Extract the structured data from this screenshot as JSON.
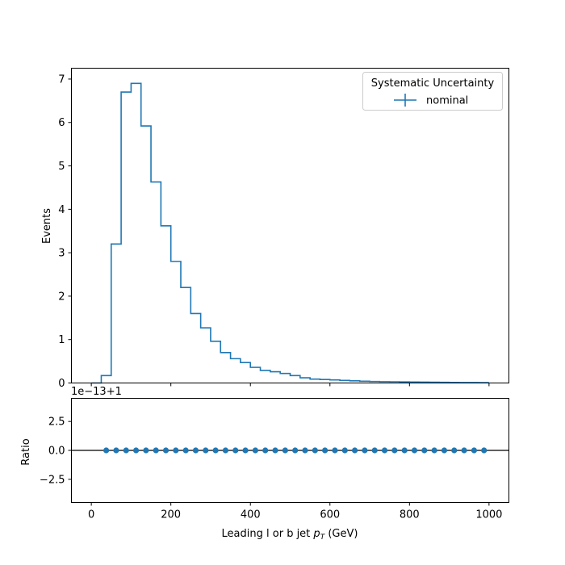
{
  "chart_data": [
    {
      "type": "histogram",
      "ylabel": "Events",
      "legend": {
        "title": "Systematic Uncertainty",
        "placement": "top-right",
        "entries": [
          {
            "label": "nominal",
            "color": "#1f77b4",
            "marker": "errorbar-line"
          }
        ]
      },
      "xlim": [
        -50,
        1050
      ],
      "ylim": [
        0,
        7.25
      ],
      "x_ticks": [
        0,
        200,
        400,
        600,
        800,
        1000
      ],
      "y_ticks": [
        0,
        1,
        2,
        3,
        4,
        5,
        6,
        7
      ],
      "y_tick_labels": [
        "0",
        "1",
        "2",
        "3",
        "4",
        "5",
        "6",
        "7"
      ],
      "bin_edges": [
        0,
        25,
        50,
        75,
        100,
        125,
        150,
        175,
        200,
        225,
        250,
        275,
        300,
        325,
        350,
        375,
        400,
        425,
        450,
        475,
        500,
        525,
        550,
        575,
        600,
        625,
        650,
        675,
        700,
        725,
        750,
        775,
        800,
        825,
        850,
        875,
        900,
        925,
        950,
        975,
        1000
      ],
      "series": [
        {
          "name": "nominal",
          "color": "#1f77b4",
          "values": [
            0.0,
            0.17,
            3.2,
            6.7,
            6.9,
            5.92,
            4.63,
            3.62,
            2.8,
            2.2,
            1.6,
            1.27,
            0.96,
            0.7,
            0.56,
            0.47,
            0.36,
            0.29,
            0.26,
            0.22,
            0.17,
            0.12,
            0.09,
            0.08,
            0.07,
            0.06,
            0.05,
            0.04,
            0.035,
            0.03,
            0.028,
            0.025,
            0.022,
            0.02,
            0.018,
            0.015,
            0.013,
            0.011,
            0.01,
            0.008
          ]
        }
      ]
    },
    {
      "type": "scatter",
      "xlabel": "Leading l or b jet $p_T$ (GeV)",
      "xlabel_main": "Leading l or b jet ",
      "xlabel_p": "p",
      "xlabel_sub": "T",
      "xlabel_unit": " (GeV)",
      "ylabel": "Ratio",
      "offset_label": "1e−13+1",
      "xlim": [
        -50,
        1050
      ],
      "ylim": [
        -4.5,
        4.5
      ],
      "x_ticks": [
        0,
        200,
        400,
        600,
        800,
        1000
      ],
      "x_tick_labels": [
        "0",
        "200",
        "400",
        "600",
        "800",
        "1000"
      ],
      "y_ticks": [
        -2.5,
        0,
        2.5
      ],
      "y_tick_labels": [
        "−2.5",
        "0.0",
        "2.5"
      ],
      "reference_line": 0,
      "series": [
        {
          "color": "#1f77b4",
          "x": [
            37.5,
            62.5,
            87.5,
            112.5,
            137.5,
            162.5,
            187.5,
            212.5,
            237.5,
            262.5,
            287.5,
            312.5,
            337.5,
            362.5,
            387.5,
            412.5,
            437.5,
            462.5,
            487.5,
            512.5,
            537.5,
            562.5,
            587.5,
            612.5,
            637.5,
            662.5,
            687.5,
            712.5,
            737.5,
            762.5,
            787.5,
            812.5,
            837.5,
            862.5,
            887.5,
            912.5,
            937.5,
            962.5,
            987.5
          ],
          "y": [
            0,
            0,
            0,
            0,
            0,
            0,
            0,
            0,
            0,
            0,
            0,
            0,
            0,
            0,
            0,
            0,
            0,
            0,
            0,
            0,
            0,
            0,
            0,
            0,
            0,
            0,
            0,
            0,
            0,
            0,
            0,
            0,
            0,
            0,
            0,
            0,
            0,
            0,
            0
          ]
        }
      ]
    }
  ]
}
